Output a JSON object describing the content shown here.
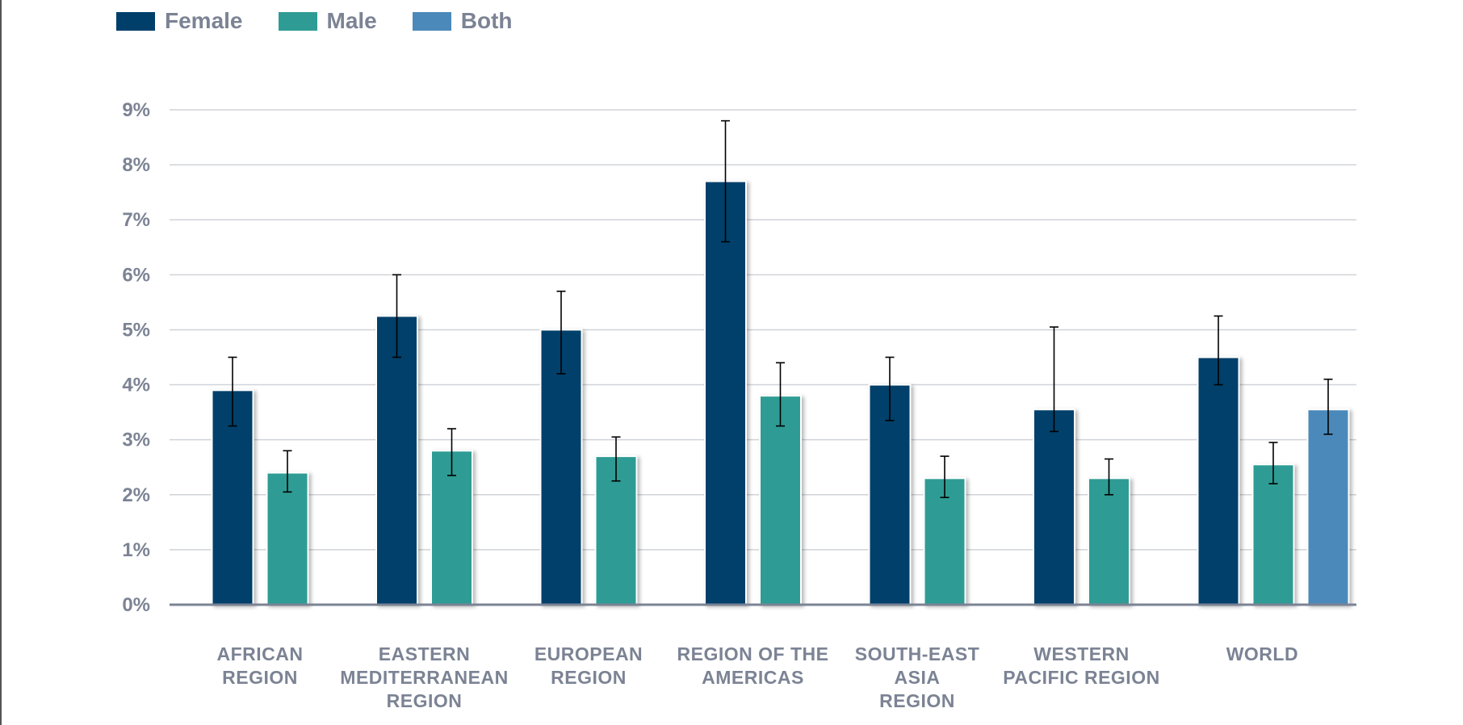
{
  "legend": {
    "female": "Female",
    "male": "Male",
    "both": "Both"
  },
  "colors": {
    "female": "#003f6a",
    "male": "#2e9c94",
    "both": "#4b89ba",
    "grid": "#d0d3d8",
    "axis": "#7b8394",
    "error": "#000000"
  },
  "chart_data": {
    "type": "bar",
    "title": "",
    "xlabel": "",
    "ylabel": "",
    "ylim": [
      0,
      9
    ],
    "yticks": [
      "0%",
      "1%",
      "2%",
      "3%",
      "4%",
      "5%",
      "6%",
      "7%",
      "8%",
      "9%"
    ],
    "grid": true,
    "legend_position": "top-left",
    "categories": [
      [
        "AFRICAN",
        "REGION"
      ],
      [
        "EASTERN",
        "MEDITERRANEAN",
        "REGION"
      ],
      [
        "EUROPEAN",
        "REGION"
      ],
      [
        "REGION OF THE",
        "AMERICAS"
      ],
      [
        "SOUTH-EAST",
        "ASIA",
        "REGION"
      ],
      [
        "WESTERN",
        "PACIFIC REGION"
      ],
      [
        "WORLD"
      ]
    ],
    "series": [
      {
        "name": "Female",
        "color_key": "female",
        "values": [
          3.9,
          5.25,
          5.0,
          7.7,
          4.0,
          3.55,
          4.5
        ],
        "error_low": [
          3.25,
          4.5,
          4.2,
          6.6,
          3.35,
          3.15,
          4.0
        ],
        "error_high": [
          4.5,
          6.0,
          5.7,
          8.8,
          4.5,
          5.05,
          5.25
        ]
      },
      {
        "name": "Male",
        "color_key": "male",
        "values": [
          2.4,
          2.8,
          2.7,
          3.8,
          2.3,
          2.3,
          2.55
        ],
        "error_low": [
          2.05,
          2.35,
          2.25,
          3.25,
          1.95,
          2.0,
          2.2
        ],
        "error_high": [
          2.8,
          3.2,
          3.05,
          4.4,
          2.7,
          2.65,
          2.95
        ]
      },
      {
        "name": "Both",
        "color_key": "both",
        "values": [
          null,
          null,
          null,
          null,
          null,
          null,
          3.55
        ],
        "error_low": [
          null,
          null,
          null,
          null,
          null,
          null,
          3.1
        ],
        "error_high": [
          null,
          null,
          null,
          null,
          null,
          null,
          4.1
        ]
      }
    ]
  }
}
